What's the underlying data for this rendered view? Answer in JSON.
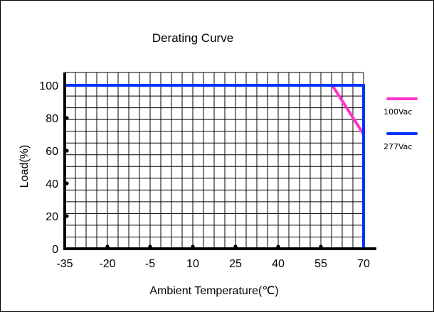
{
  "chart_data": {
    "type": "line",
    "title": "Derating Curve",
    "xlabel": "Ambient Temperature(℃)",
    "ylabel": "Load(%)",
    "x_ticks": [
      "-35",
      "-20",
      "-5",
      "10",
      "25",
      "40",
      "55",
      "70"
    ],
    "x_tick_values": [
      -35,
      -20,
      -5,
      10,
      25,
      40,
      55,
      70
    ],
    "y_ticks": [
      "0",
      "20",
      "40",
      "60",
      "80",
      "100"
    ],
    "y_tick_values": [
      0,
      20,
      40,
      60,
      80,
      100
    ],
    "xlim": [
      -35,
      70
    ],
    "ylim": [
      0,
      100
    ],
    "grid": true,
    "legend_position": "right",
    "series": [
      {
        "name": "100Vac",
        "color": "#ff33cc",
        "x": [
          -35,
          59,
          70
        ],
        "y": [
          100,
          100,
          70
        ]
      },
      {
        "name": "277Vac",
        "color": "#0033ff",
        "x": [
          -35,
          70,
          70
        ],
        "y": [
          100,
          100,
          0
        ]
      }
    ]
  }
}
